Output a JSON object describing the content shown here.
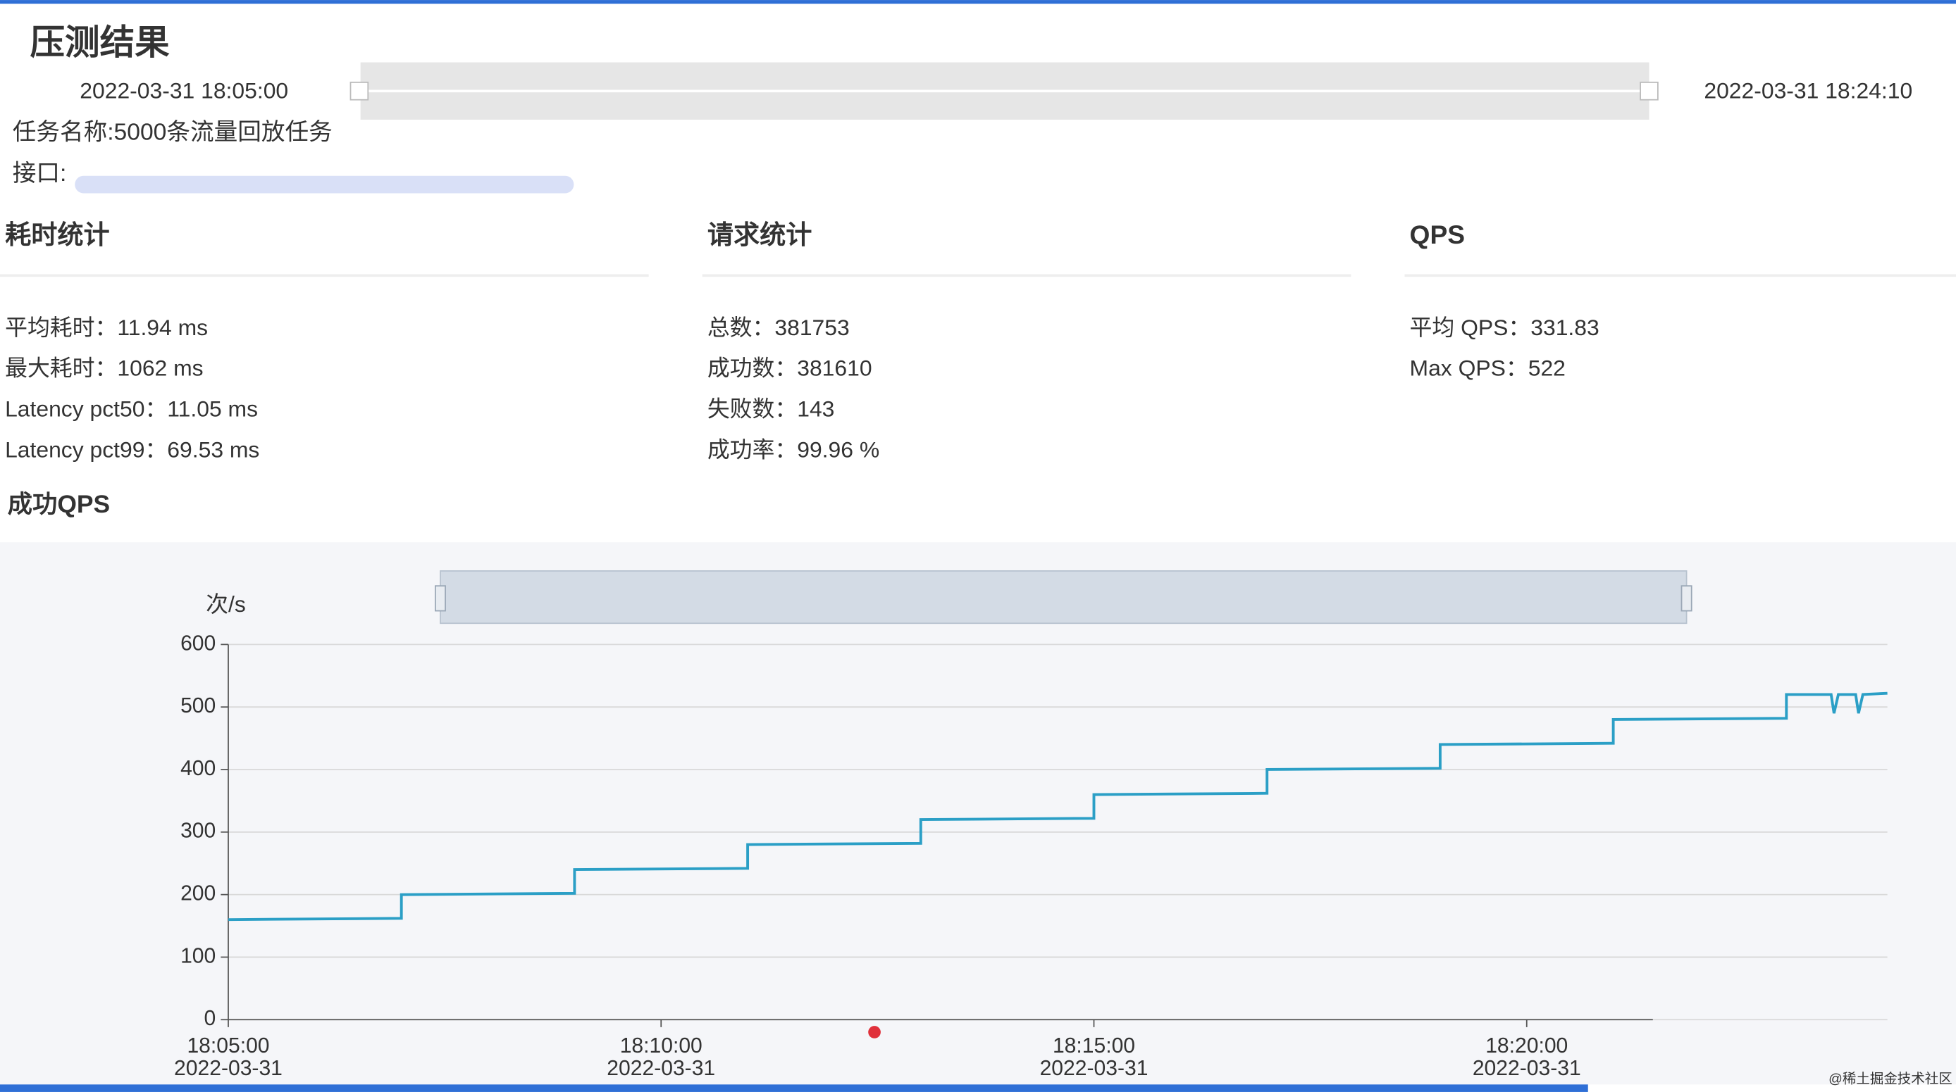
{
  "header": {
    "title": "压测结果",
    "start": "2022-03-31 18:05:00",
    "end": "2022-03-31 18:24:10",
    "task": "任务名称:5000条流量回放任务",
    "api": "接口:"
  },
  "sections": [
    {
      "title": "耗时统计",
      "items": [
        "平均耗时：11.94 ms",
        "最大耗时：1062 ms",
        "Latency pct50：11.05 ms",
        "Latency pct99：69.53 ms"
      ]
    },
    {
      "title": "请求统计",
      "items": [
        "总数：381753",
        "成功数：381610",
        "失败数：143",
        "成功率：99.96 %"
      ]
    },
    {
      "title": "QPS",
      "items": [
        "平均 QPS：331.83",
        "Max QPS：522"
      ]
    }
  ],
  "watermark": "@稀土掘金技术社区",
  "chart_data": {
    "type": "line",
    "title": "成功QPS",
    "y_label": "次/s",
    "color": "#2b9fc6",
    "x": [
      "2022-03-31 18:05:00",
      "2022-03-31 18:07:00",
      "2022-03-31 18:07:00",
      "2022-03-31 18:09:00",
      "2022-03-31 18:09:00",
      "2022-03-31 18:11:00",
      "2022-03-31 18:11:00",
      "2022-03-31 18:13:00",
      "2022-03-31 18:13:00",
      "2022-03-31 18:15:00",
      "2022-03-31 18:15:00",
      "2022-03-31 18:17:00",
      "2022-03-31 18:17:00",
      "2022-03-31 18:19:00",
      "2022-03-31 18:19:00",
      "2022-03-31 18:21:00",
      "2022-03-31 18:21:00",
      "2022-03-31 18:23:00",
      "2022-03-31 18:23:00",
      "2022-03-31 18:23:31",
      "2022-03-31 18:23:33",
      "2022-03-31 18:23:36",
      "2022-03-31 18:23:48",
      "2022-03-31 18:23:50",
      "2022-03-31 18:23:53",
      "2022-03-31 18:24:10"
    ],
    "values": [
      160,
      162,
      200,
      202,
      240,
      242,
      280,
      282,
      320,
      322,
      360,
      362,
      400,
      402,
      440,
      442,
      480,
      482,
      520,
      520,
      490,
      520,
      520,
      490,
      520,
      522
    ],
    "xlim": [
      "2022-03-31 18:05:00",
      "2022-03-31 18:24:10"
    ],
    "xticks": [
      {
        "value": "2022-03-31 18:05:00",
        "label": [
          "18:05:00",
          "2022-03-31"
        ]
      },
      {
        "value": "2022-03-31 18:10:00",
        "label": [
          "18:10:00",
          "2022-03-31"
        ]
      },
      {
        "value": "2022-03-31 18:15:00",
        "label": [
          "18:15:00",
          "2022-03-31"
        ]
      },
      {
        "value": "2022-03-31 18:20:00",
        "label": [
          "18:20:00",
          "2022-03-31"
        ]
      }
    ],
    "ylim": [
      0,
      600
    ],
    "yticks": [
      0,
      100,
      200,
      300,
      400,
      500,
      600
    ],
    "grid": true
  }
}
